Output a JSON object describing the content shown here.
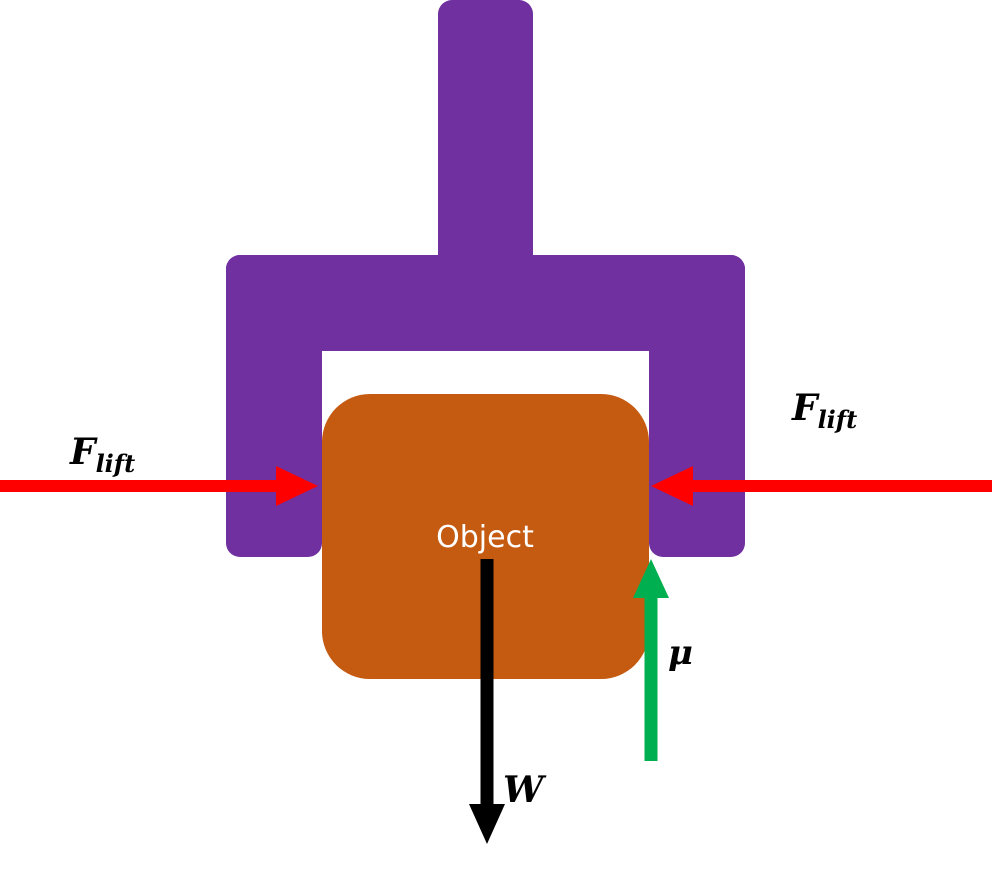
{
  "object_label": "Object",
  "forces": {
    "lift_left": {
      "base": "F",
      "sub": "lift"
    },
    "lift_right": {
      "base": "F",
      "sub": "lift"
    },
    "friction": "μ",
    "weight": "W"
  },
  "colors": {
    "gripper": "#7030a0",
    "object": "#c55a11",
    "lift_arrow": "#ff0000",
    "friction_arrow": "#00b050",
    "weight_arrow": "#000000",
    "object_text": "#ffffff",
    "force_text": "#000000"
  }
}
